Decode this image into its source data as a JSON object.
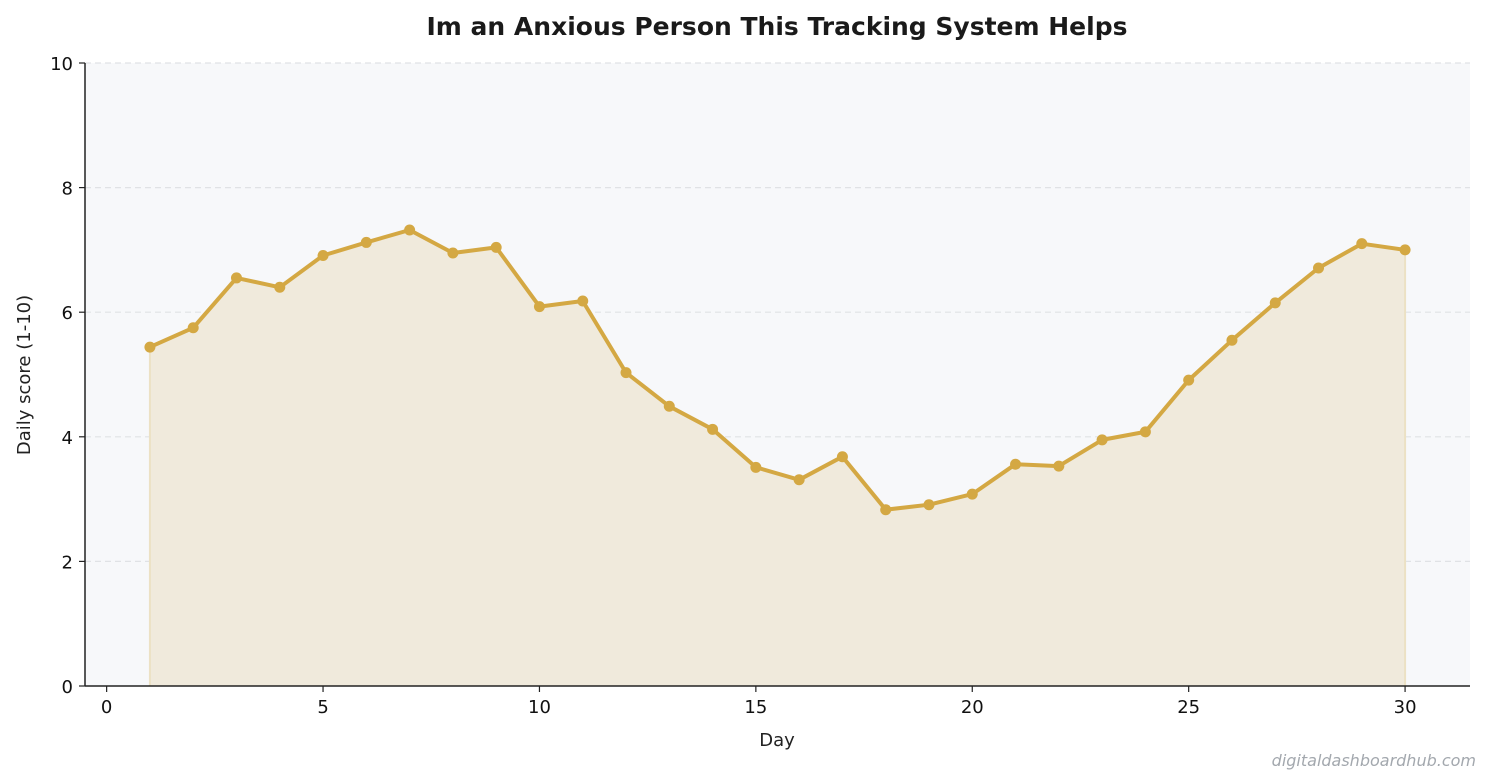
{
  "chart_data": {
    "type": "area",
    "title": "Im an Anxious Person  This Tracking System Helps",
    "xlabel": "Day",
    "ylabel": "Daily score (1-10)",
    "xlim": [
      -0.5,
      31.5
    ],
    "ylim": [
      0,
      10
    ],
    "xticks": [
      0,
      5,
      10,
      15,
      20,
      25,
      30
    ],
    "yticks": [
      0,
      2,
      4,
      6,
      8,
      10
    ],
    "grid": "y-dashed",
    "line_color": "#d4a843",
    "fill_color": "#f0eadc",
    "plot_background": "#f7f8fa",
    "series": [
      {
        "x": [
          1,
          2,
          3,
          4,
          5,
          6,
          7,
          8,
          9,
          10,
          11,
          12,
          13,
          14,
          15,
          16,
          17,
          18,
          19,
          20,
          21,
          22,
          23,
          24,
          25,
          26,
          27,
          28,
          29,
          30
        ],
        "values": [
          5.44,
          5.75,
          6.55,
          6.4,
          6.91,
          7.12,
          7.32,
          6.95,
          7.04,
          6.09,
          6.18,
          5.03,
          4.49,
          4.12,
          3.51,
          3.31,
          3.68,
          2.83,
          2.91,
          3.08,
          3.56,
          3.53,
          3.95,
          4.08,
          4.91,
          5.55,
          6.15,
          6.71,
          7.1,
          7.0
        ]
      }
    ]
  },
  "watermark": "digitaldashboardhub.com"
}
